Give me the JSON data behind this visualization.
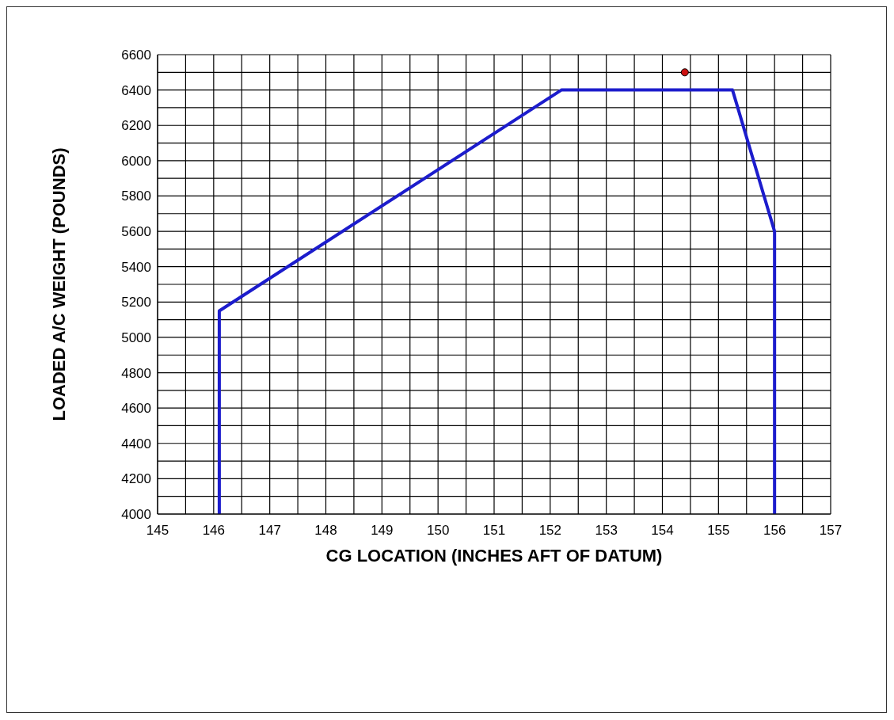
{
  "chart_data": {
    "type": "line",
    "xlabel": "CG LOCATION (INCHES AFT OF DATUM)",
    "ylabel": "LOADED A/C WEIGHT (POUNDS)",
    "xlim": [
      145,
      157
    ],
    "xticks": [
      145,
      {
        "value": 145.5,
        "label": null
      },
      146,
      {
        "value": 146.5,
        "label": null
      },
      147,
      {
        "value": 147.5,
        "label": null
      },
      148,
      {
        "value": 148.5,
        "label": null
      },
      149,
      {
        "value": 149.5,
        "label": null
      },
      150,
      {
        "value": 150.5,
        "label": null
      },
      151,
      {
        "value": 151.5,
        "label": null
      },
      152,
      {
        "value": 152.5,
        "label": null
      },
      153,
      {
        "value": 153.5,
        "label": null
      },
      154,
      {
        "value": 154.5,
        "label": null
      },
      155,
      {
        "value": 155.5,
        "label": null
      },
      156,
      {
        "value": 156.5,
        "label": null
      },
      157
    ],
    "ylim": [
      4000,
      6600
    ],
    "yticks": [
      4000,
      {
        "value": 4100,
        "label": null
      },
      4200,
      {
        "value": 4300,
        "label": null
      },
      4400,
      {
        "value": 4500,
        "label": null
      },
      4600,
      {
        "value": 4700,
        "label": null
      },
      4800,
      {
        "value": 4900,
        "label": null
      },
      5000,
      {
        "value": 5100,
        "label": null
      },
      5200,
      {
        "value": 5300,
        "label": null
      },
      5400,
      {
        "value": 5500,
        "label": null
      },
      5600,
      {
        "value": 5700,
        "label": null
      },
      5800,
      {
        "value": 5900,
        "label": null
      },
      6000,
      {
        "value": 6100,
        "label": null
      },
      6200,
      {
        "value": 6300,
        "label": null
      },
      6400,
      {
        "value": 6500,
        "label": null
      },
      6600
    ],
    "grid": true,
    "series": [
      {
        "color": "#1c1ccc",
        "marker": "none",
        "line_style": "solid",
        "x": [
          146.1,
          146.1,
          152.2,
          155.25,
          156,
          156
        ],
        "values": [
          4000,
          5150,
          6400,
          6400,
          5600,
          4000
        ]
      },
      {
        "type": "scatter",
        "color": "#cc1111",
        "marker": "circle",
        "x": [
          154.4
        ],
        "values": [
          6500
        ]
      }
    ]
  }
}
